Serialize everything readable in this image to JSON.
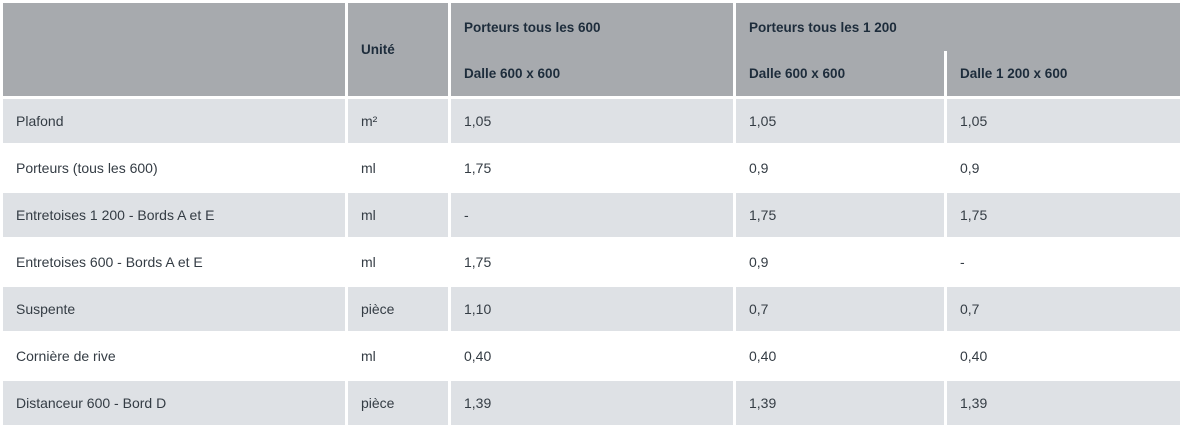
{
  "table": {
    "header": {
      "corner": "",
      "unit_label": "Unité",
      "groups": [
        {
          "label": "Porteurs tous les 600",
          "subcolumns": [
            "Dalle 600 x 600"
          ]
        },
        {
          "label": "Porteurs tous les 1 200",
          "subcolumns": [
            "Dalle 600 x 600",
            "Dalle 1 200 x 600"
          ]
        }
      ]
    },
    "rows": [
      {
        "label": "Plafond",
        "unit": "m²",
        "values": [
          "1,05",
          "1,05",
          "1,05"
        ]
      },
      {
        "label": "Porteurs (tous les 600)",
        "unit": "ml",
        "values": [
          "1,75",
          "0,9",
          "0,9"
        ]
      },
      {
        "label": "Entretoises 1 200 - Bords A et E",
        "unit": "ml",
        "values": [
          "-",
          "1,75",
          "1,75"
        ]
      },
      {
        "label": "Entretoises 600 - Bords A et E",
        "unit": "ml",
        "values": [
          "1,75",
          "0,9",
          "-"
        ]
      },
      {
        "label": "Suspente",
        "unit": "pièce",
        "values": [
          "1,10",
          "0,7",
          "0,7"
        ]
      },
      {
        "label": "Cornière de rive",
        "unit": "ml",
        "values": [
          "0,40",
          "0,40",
          "0,40"
        ]
      },
      {
        "label": "Distanceur 600 - Bord D",
        "unit": "pièce",
        "values": [
          "1,39",
          "1,39",
          "1,39"
        ]
      }
    ]
  },
  "colors": {
    "header_bg": "#a7aaae",
    "row_alt_bg": "#dee1e5",
    "row_bg": "#ffffff",
    "header_text": "#1d2c3b",
    "body_text": "#343c44"
  }
}
